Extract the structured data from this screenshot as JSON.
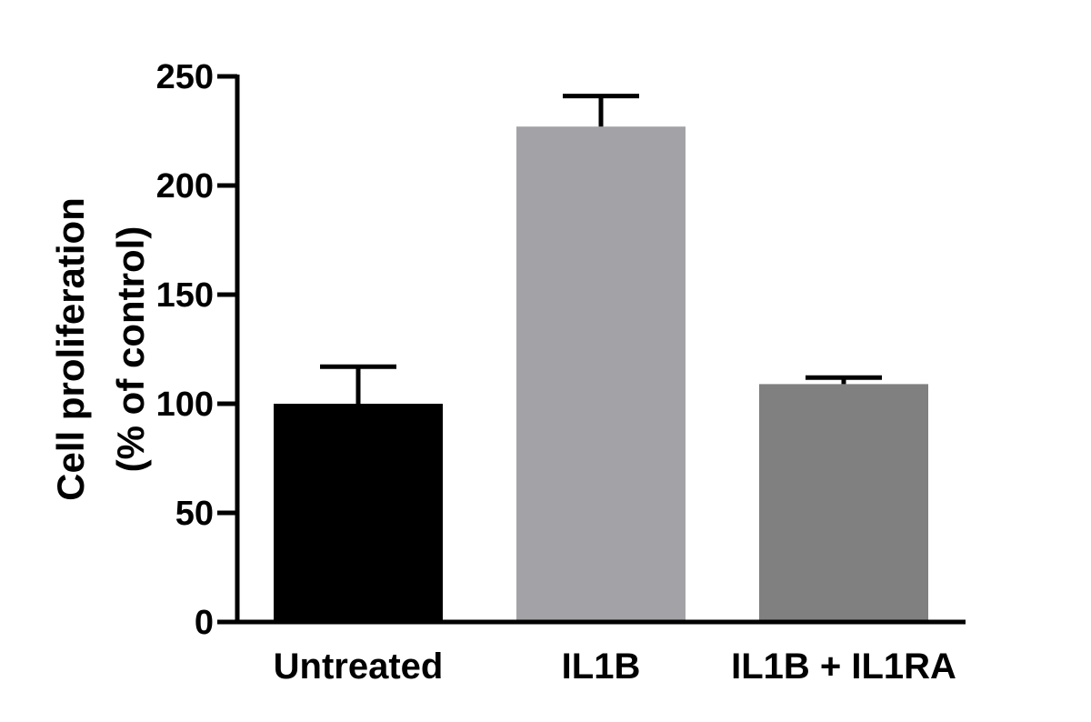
{
  "chart_data": {
    "type": "bar",
    "title": "",
    "xlabel": "",
    "ylabel_lines": [
      "Cell proliferation",
      "(% of control)"
    ],
    "categories": [
      "Untreated",
      "IL1B",
      "IL1B + IL1RA"
    ],
    "values": [
      100,
      227,
      109
    ],
    "errors": [
      17,
      14,
      3
    ],
    "bar_colors": [
      "#000000",
      "#a3a3a7",
      "#808080"
    ],
    "ylim": [
      0,
      250
    ],
    "yticks": [
      0,
      50,
      100,
      150,
      200,
      250
    ],
    "ytick_labels": [
      "0",
      "50",
      "100",
      "150",
      "200",
      "250"
    ],
    "grid": false,
    "legend": "none"
  }
}
